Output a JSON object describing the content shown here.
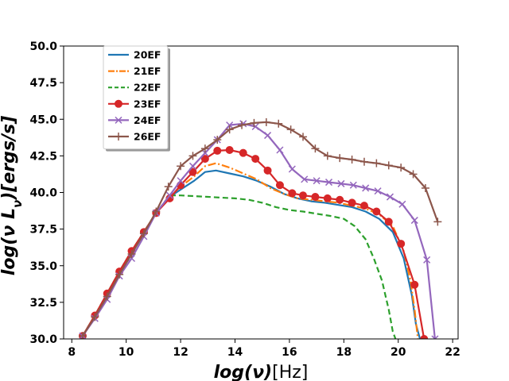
{
  "chart_data": {
    "type": "line",
    "title": "",
    "xlabel_main": "log(ν)",
    "xlabel_unit": "[Hz]",
    "ylabel_main": "log(ν L",
    "ylabel_sub": "ν",
    "ylabel_end": ")[ergs/s]",
    "xlim": [
      7.7,
      22.2
    ],
    "ylim": [
      30.0,
      50.0
    ],
    "xticks": [
      8,
      10,
      12,
      14,
      16,
      18,
      20,
      22
    ],
    "xtick_labels": [
      "8",
      "10",
      "12",
      "14",
      "16",
      "18",
      "20",
      "22"
    ],
    "yticks": [
      30.0,
      32.5,
      35.0,
      37.5,
      40.0,
      42.5,
      45.0,
      47.5,
      50.0
    ],
    "ytick_labels": [
      "30.0",
      "32.5",
      "35.0",
      "37.5",
      "40.0",
      "42.5",
      "45.0",
      "47.5",
      "50.0"
    ],
    "grid": false,
    "legend_position": "top-left",
    "series": [
      {
        "name": "20EF",
        "color": "#1f77b4",
        "dash": "solid",
        "marker": "none",
        "x": [
          8.4,
          8.85,
          9.3,
          9.75,
          10.2,
          10.65,
          11.1,
          11.6,
          12.0,
          12.5,
          12.9,
          13.3,
          13.8,
          14.3,
          14.8,
          15.3,
          15.8,
          16.3,
          16.8,
          17.3,
          17.8,
          18.3,
          18.8,
          19.3,
          19.8,
          20.2,
          20.5,
          20.65,
          20.8
        ],
        "y": [
          30.2,
          31.6,
          33.1,
          34.6,
          36.0,
          37.3,
          38.6,
          39.7,
          40.2,
          40.8,
          41.4,
          41.5,
          41.3,
          41.1,
          40.8,
          40.4,
          39.9,
          39.6,
          39.4,
          39.3,
          39.15,
          39.0,
          38.7,
          38.2,
          37.3,
          35.5,
          33.0,
          31.0,
          30.0
        ]
      },
      {
        "name": "21EF",
        "color": "#ff7f0e",
        "dash": "dashdot",
        "marker": "none",
        "x": [
          8.4,
          8.85,
          9.3,
          9.75,
          10.2,
          10.65,
          11.1,
          11.6,
          12.0,
          12.5,
          12.9,
          13.3,
          13.8,
          14.3,
          14.8,
          15.3,
          15.8,
          16.3,
          16.8,
          17.3,
          17.8,
          18.3,
          18.8,
          19.3,
          19.8,
          20.2,
          20.45,
          20.6,
          20.72
        ],
        "y": [
          30.2,
          31.6,
          33.1,
          34.6,
          36.0,
          37.3,
          38.6,
          39.7,
          40.4,
          41.1,
          41.8,
          42.0,
          41.7,
          41.3,
          40.9,
          40.3,
          39.9,
          39.6,
          39.5,
          39.4,
          39.3,
          39.1,
          38.9,
          38.5,
          37.7,
          36.0,
          34.0,
          32.0,
          30.0
        ]
      },
      {
        "name": "22EF",
        "color": "#2ca02c",
        "dash": "dashed",
        "marker": "none",
        "x": [
          8.4,
          8.85,
          9.3,
          9.75,
          10.2,
          10.65,
          11.1,
          11.6,
          12.0,
          12.5,
          13.0,
          13.5,
          14.0,
          14.5,
          15.0,
          15.5,
          16.0,
          16.5,
          17.0,
          17.5,
          18.0,
          18.4,
          18.8,
          19.1,
          19.4,
          19.65,
          19.8,
          19.9
        ],
        "y": [
          30.2,
          31.6,
          33.1,
          34.6,
          36.0,
          37.3,
          38.6,
          39.8,
          39.8,
          39.75,
          39.7,
          39.65,
          39.6,
          39.5,
          39.3,
          39.0,
          38.8,
          38.7,
          38.55,
          38.4,
          38.2,
          37.7,
          36.8,
          35.5,
          34.0,
          32.0,
          30.5,
          30.0
        ]
      },
      {
        "name": "23EF",
        "color": "#d62728",
        "dash": "solid",
        "marker": "circle",
        "x": [
          8.4,
          8.85,
          9.3,
          9.75,
          10.2,
          10.65,
          11.1,
          11.6,
          12.0,
          12.45,
          12.9,
          13.35,
          13.8,
          14.3,
          14.75,
          15.2,
          15.65,
          16.1,
          16.5,
          16.95,
          17.4,
          17.85,
          18.3,
          18.75,
          19.2,
          19.65,
          20.1,
          20.6,
          20.95
        ],
        "y": [
          30.2,
          31.6,
          33.1,
          34.6,
          36.0,
          37.3,
          38.6,
          39.6,
          40.5,
          41.4,
          42.3,
          42.85,
          42.9,
          42.7,
          42.3,
          41.5,
          40.5,
          39.95,
          39.8,
          39.7,
          39.6,
          39.5,
          39.3,
          39.1,
          38.7,
          38.0,
          36.5,
          33.7,
          30.0
        ]
      },
      {
        "name": "24EF",
        "color": "#9467bd",
        "dash": "solid",
        "marker": "x",
        "x": [
          8.4,
          8.85,
          9.3,
          9.75,
          10.2,
          10.65,
          11.1,
          11.6,
          12.0,
          12.45,
          12.9,
          13.35,
          13.8,
          14.3,
          14.75,
          15.2,
          15.65,
          16.1,
          16.55,
          17.0,
          17.45,
          17.9,
          18.35,
          18.8,
          19.25,
          19.7,
          20.15,
          20.6,
          21.05,
          21.35
        ],
        "y": [
          30.2,
          31.4,
          32.7,
          34.3,
          35.5,
          37.0,
          38.6,
          39.8,
          40.8,
          41.8,
          42.7,
          43.6,
          44.6,
          44.7,
          44.5,
          43.9,
          42.9,
          41.6,
          40.9,
          40.8,
          40.7,
          40.6,
          40.5,
          40.3,
          40.1,
          39.7,
          39.2,
          38.1,
          35.4,
          30.0
        ]
      },
      {
        "name": "26EF",
        "color": "#8c564b",
        "dash": "solid",
        "marker": "plus",
        "x": [
          8.4,
          8.85,
          9.3,
          9.75,
          10.2,
          10.65,
          11.1,
          11.55,
          12.0,
          12.45,
          12.9,
          13.35,
          13.8,
          14.25,
          14.7,
          15.15,
          15.6,
          16.05,
          16.5,
          16.95,
          17.4,
          17.85,
          18.3,
          18.75,
          19.2,
          19.65,
          20.1,
          20.55,
          21.0,
          21.45
        ],
        "y": [
          30.2,
          31.5,
          32.9,
          34.4,
          35.8,
          37.2,
          38.7,
          40.4,
          41.8,
          42.5,
          43.0,
          43.6,
          44.3,
          44.6,
          44.75,
          44.8,
          44.7,
          44.3,
          43.8,
          43.0,
          42.5,
          42.35,
          42.25,
          42.1,
          42.0,
          41.85,
          41.7,
          41.25,
          40.3,
          38.0
        ]
      }
    ]
  }
}
